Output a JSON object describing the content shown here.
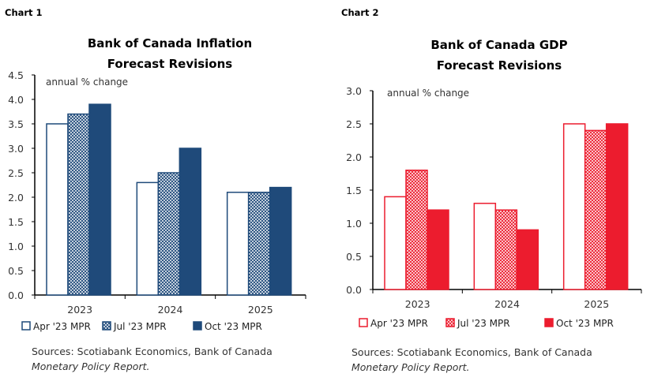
{
  "chart_data": [
    {
      "type": "bar",
      "label": "Chart 1",
      "title": [
        "Bank of Canada Inflation",
        "Forecast Revisions"
      ],
      "unit_label": "annual % change",
      "categories": [
        "2023",
        "2024",
        "2025"
      ],
      "series": [
        {
          "name": "Apr '23 MPR",
          "values": [
            3.5,
            2.3,
            2.1
          ],
          "style": "outline"
        },
        {
          "name": "Jul '23 MPR",
          "values": [
            3.7,
            2.5,
            2.1
          ],
          "style": "hatched"
        },
        {
          "name": "Oct '23 MPR",
          "values": [
            3.9,
            3.0,
            2.2
          ],
          "style": "solid"
        }
      ],
      "ylim": [
        0,
        4.5
      ],
      "yticks": [
        "0.0",
        "0.5",
        "1.0",
        "1.5",
        "2.0",
        "2.5",
        "3.0",
        "3.5",
        "4.0",
        "4.5"
      ],
      "color": "#1f4a7a",
      "grid": false,
      "legend": "bottom",
      "source": [
        "Sources: Scotiabank Economics, Bank of Canada",
        "Monetary Policy Report."
      ]
    },
    {
      "type": "bar",
      "label": "Chart 2",
      "title": [
        "Bank of Canada GDP",
        "Forecast Revisions"
      ],
      "unit_label": "annual % change",
      "categories": [
        "2023",
        "2024",
        "2025"
      ],
      "series": [
        {
          "name": "Apr '23 MPR",
          "values": [
            1.4,
            1.3,
            2.5
          ],
          "style": "outline"
        },
        {
          "name": "Jul '23 MPR",
          "values": [
            1.8,
            1.2,
            2.4
          ],
          "style": "hatched"
        },
        {
          "name": "Oct '23 MPR",
          "values": [
            1.2,
            0.9,
            2.5
          ],
          "style": "solid"
        }
      ],
      "ylim": [
        0,
        3.0
      ],
      "yticks": [
        "0.0",
        "0.5",
        "1.0",
        "1.5",
        "2.0",
        "2.5",
        "3.0"
      ],
      "color": "#ec1c2e",
      "grid": false,
      "legend": "bottom",
      "source": [
        "Sources: Scotiabank Economics, Bank of Canada",
        "Monetary Policy Report."
      ]
    }
  ]
}
